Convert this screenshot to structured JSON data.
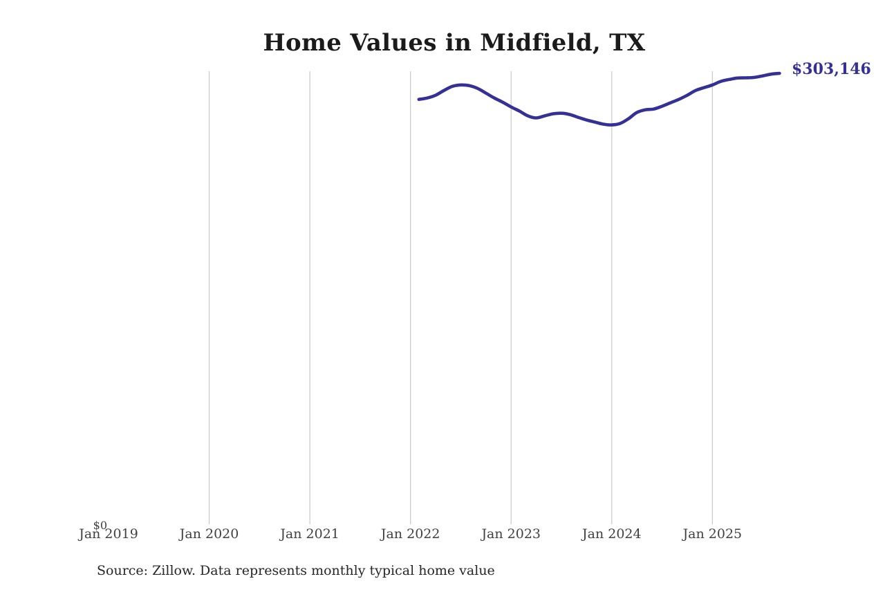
{
  "title": "Home Values in Midfield, TX",
  "colors": {
    "line": "#343096",
    "end_label": "#343096",
    "gridline": "#cccccc",
    "title": "#1b1b1b",
    "axis_label": "#404040",
    "source": "#262626"
  },
  "chart_data": {
    "type": "line",
    "title": "Home Values in Midfield, TX",
    "source": "Source: Zillow. Data represents monthly typical home value",
    "end_label": "$303,146",
    "end_value": 303146,
    "ylabel": "",
    "xlabel": "",
    "ylim": [
      0,
      304000
    ],
    "grid": "vertical-only",
    "legend": "none",
    "y_ticks": [
      {
        "label": "$0",
        "value": 0
      }
    ],
    "x_ticks": [
      {
        "label": "Jan 2019",
        "months_from_jan2019": 0,
        "gridline": false
      },
      {
        "label": "Jan 2020",
        "months_from_jan2019": 12,
        "gridline": true
      },
      {
        "label": "Jan 2021",
        "months_from_jan2019": 24,
        "gridline": true
      },
      {
        "label": "Jan 2022",
        "months_from_jan2019": 36,
        "gridline": true
      },
      {
        "label": "Jan 2023",
        "months_from_jan2019": 48,
        "gridline": true
      },
      {
        "label": "Jan 2024",
        "months_from_jan2019": 60,
        "gridline": true
      },
      {
        "label": "Jan 2025",
        "months_from_jan2019": 72,
        "gridline": true
      }
    ],
    "series": [
      {
        "name": "Typical home value",
        "start_month": "2022-02",
        "end_month": "2025-09",
        "frequency": "monthly",
        "values": [
          285600,
          286500,
          288400,
          291600,
          294400,
          295300,
          294900,
          293000,
          289800,
          286500,
          283700,
          280500,
          277700,
          274500,
          273100,
          274500,
          275900,
          276300,
          275400,
          273500,
          271700,
          270300,
          268900,
          268400,
          269400,
          272600,
          276800,
          278600,
          279100,
          281000,
          283300,
          285600,
          288400,
          291600,
          293500,
          295300,
          297700,
          299000,
          300000,
          300100,
          300400,
          301400,
          302600,
          303146
        ]
      }
    ]
  }
}
